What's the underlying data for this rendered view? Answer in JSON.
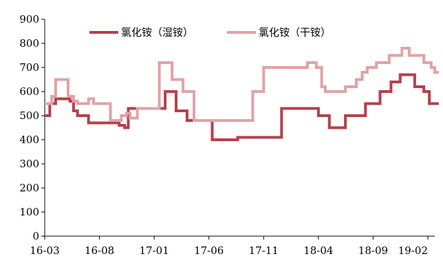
{
  "chart_data": {
    "type": "line",
    "title": "",
    "xlabel": "",
    "ylabel": "",
    "ylim": [
      0,
      900
    ],
    "yticks": [
      0,
      100,
      200,
      300,
      400,
      500,
      600,
      700,
      800,
      900
    ],
    "xlim": [
      "2016-03",
      "2019-02"
    ],
    "xticks": [
      "16-03",
      "16-08",
      "17-01",
      "17-06",
      "17-11",
      "18-04",
      "18-09",
      "19-02"
    ],
    "grid": false,
    "legend_position": "top",
    "series": [
      {
        "name": "氯化铵（湿铵）",
        "color": "#b5404a",
        "step": true,
        "points": [
          [
            "2016-03-01",
            500
          ],
          [
            "2016-03-15",
            550
          ],
          [
            "2016-04-01",
            570
          ],
          [
            "2016-05-10",
            560
          ],
          [
            "2016-05-20",
            520
          ],
          [
            "2016-06-01",
            500
          ],
          [
            "2016-07-01",
            470
          ],
          [
            "2016-09-25",
            460
          ],
          [
            "2016-10-10",
            450
          ],
          [
            "2016-10-20",
            530
          ],
          [
            "2017-02-01",
            600
          ],
          [
            "2017-03-01",
            520
          ],
          [
            "2017-04-01",
            480
          ],
          [
            "2017-06-10",
            400
          ],
          [
            "2017-08-20",
            410
          ],
          [
            "2017-12-20",
            530
          ],
          [
            "2018-04-01",
            500
          ],
          [
            "2018-05-01",
            450
          ],
          [
            "2018-06-15",
            500
          ],
          [
            "2018-08-10",
            550
          ],
          [
            "2018-09-20",
            600
          ],
          [
            "2018-10-20",
            640
          ],
          [
            "2018-11-15",
            670
          ],
          [
            "2018-12-25",
            620
          ],
          [
            "2019-01-20",
            600
          ],
          [
            "2019-02-05",
            550
          ],
          [
            "2019-03-01",
            550
          ]
        ]
      },
      {
        "name": "氯化铵（干铵）",
        "color": "#e2a2a4",
        "step": true,
        "points": [
          [
            "2016-03-01",
            550
          ],
          [
            "2016-03-20",
            580
          ],
          [
            "2016-04-01",
            650
          ],
          [
            "2016-05-05",
            580
          ],
          [
            "2016-05-20",
            560
          ],
          [
            "2016-06-01",
            550
          ],
          [
            "2016-07-01",
            570
          ],
          [
            "2016-07-15",
            550
          ],
          [
            "2016-09-01",
            480
          ],
          [
            "2016-10-01",
            500
          ],
          [
            "2016-10-15",
            510
          ],
          [
            "2016-10-25",
            490
          ],
          [
            "2016-11-15",
            530
          ],
          [
            "2017-01-15",
            720
          ],
          [
            "2017-02-20",
            650
          ],
          [
            "2017-03-20",
            600
          ],
          [
            "2017-04-20",
            480
          ],
          [
            "2017-10-01",
            600
          ],
          [
            "2017-11-01",
            700
          ],
          [
            "2018-03-01",
            720
          ],
          [
            "2018-03-25",
            700
          ],
          [
            "2018-04-10",
            620
          ],
          [
            "2018-04-20",
            600
          ],
          [
            "2018-06-15",
            620
          ],
          [
            "2018-07-15",
            650
          ],
          [
            "2018-08-01",
            680
          ],
          [
            "2018-08-15",
            700
          ],
          [
            "2018-09-10",
            720
          ],
          [
            "2018-10-15",
            750
          ],
          [
            "2018-11-20",
            780
          ],
          [
            "2018-12-10",
            750
          ],
          [
            "2019-01-20",
            720
          ],
          [
            "2019-02-10",
            700
          ],
          [
            "2019-02-20",
            680
          ],
          [
            "2019-03-01",
            680
          ]
        ]
      }
    ]
  }
}
